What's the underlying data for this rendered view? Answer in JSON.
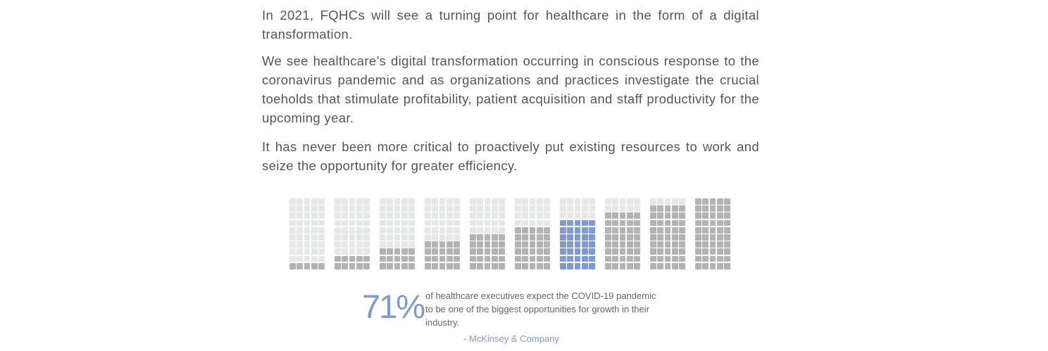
{
  "article": {
    "paragraphs": [
      "In 2021, FQHCs will see a turning point for healthcare in the form of a digital transformation.",
      "We see healthcare’s digital transformation occurring in conscious response to the coronavirus pandemic and as organizations and practices investigate the crucial toeholds that stimulate profitability, patient acquisition and staff productivity for the upcoming year.",
      "It has never been more critical to proactively put existing resources to work and seize the opportunity for greater efficiency."
    ]
  },
  "infographic": {
    "filled_percent_per_block": [
      10,
      20,
      30,
      40,
      50,
      60,
      70,
      80,
      90,
      100
    ],
    "highlight_block_index": 6,
    "colors": {
      "empty": "#e6e7e7",
      "filled": "#b3b3b3",
      "highlight": "#7f9ad1"
    },
    "stat_value": "71%",
    "stat_description": "of healthcare executives expect the COVID-19 pandemic to be one of the biggest opportunities for growth in their industry.",
    "source": "- McKinsey & Company"
  }
}
